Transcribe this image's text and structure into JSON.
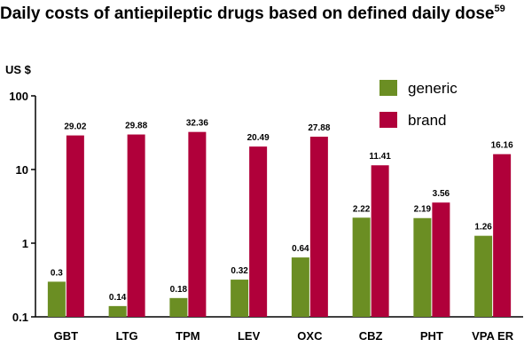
{
  "page": {
    "title": "Daily costs of antiepileptic drugs based on defined daily dose",
    "title_ref": "59",
    "unit": "US $"
  },
  "chart_data": {
    "type": "bar",
    "title": "Daily costs of antiepileptic drugs based on defined daily dose",
    "ylabel": "US $",
    "yscale": "log",
    "ylim": [
      0.1,
      100
    ],
    "yticks": [
      "0.1",
      "1",
      "10",
      "100"
    ],
    "grid": false,
    "legend": "top-right",
    "categories": [
      "GBT",
      "LTG",
      "TPM",
      "LEV",
      "OXC",
      "CBZ",
      "PHT",
      "VPA ER"
    ],
    "series": [
      {
        "name": "generic",
        "color": "#6B8E23",
        "values": [
          0.3,
          0.14,
          0.18,
          0.32,
          0.64,
          2.22,
          2.19,
          1.26
        ],
        "labels": [
          "0.3",
          "0.14",
          "0.18",
          "0.32",
          "0.64",
          "2.22",
          "2.19",
          "1.26"
        ]
      },
      {
        "name": "brand",
        "color": "#B0003A",
        "values": [
          29.02,
          29.88,
          32.36,
          20.49,
          27.88,
          11.41,
          3.56,
          16.16
        ],
        "labels": [
          "29.02",
          "29.88",
          "32.36",
          "20.49",
          "27.88",
          "11.41",
          "3.56",
          "16.16"
        ]
      }
    ]
  }
}
